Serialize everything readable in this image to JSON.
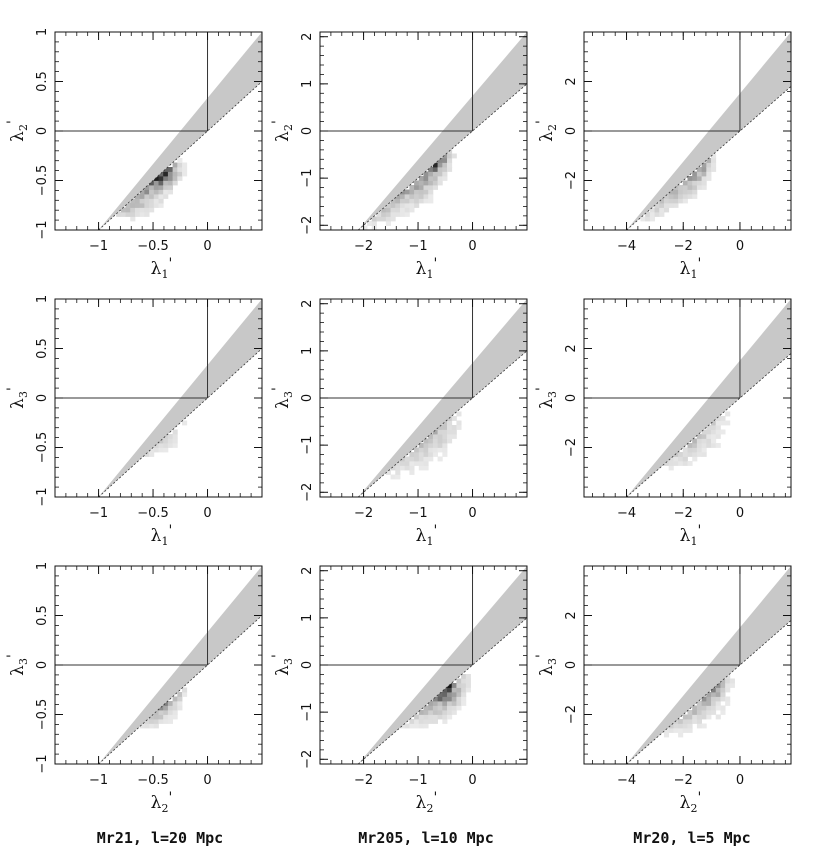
{
  "captions": [
    "Mr21, l=20 Mpc",
    "Mr205, l=10 Mpc",
    "Mr20, l=5 Mpc"
  ],
  "chart_data": [
    {
      "type": "heatmap",
      "xlabel": {
        "sym": "λ",
        "sub": "1",
        "prime": "'"
      },
      "ylabel": {
        "sym": "λ",
        "sub": "2",
        "prime": "'"
      },
      "xlim": [
        -1.4,
        0.5
      ],
      "ylim": [
        -1.0,
        1.0
      ],
      "xticks": [
        -1,
        -0.5,
        0
      ],
      "yticks": [
        -1,
        -0.5,
        0,
        0.5,
        1
      ],
      "ref_lines": {
        "x": 0,
        "y": 0
      },
      "excluded_region": "y > x (shaded)",
      "clusters": [
        {
          "x": -0.5,
          "y": -0.4,
          "sx": 0.11,
          "sy": 0.09,
          "w": 1.0
        },
        {
          "x": -0.75,
          "y": -0.55,
          "sx": 0.18,
          "sy": 0.16,
          "w": 0.35
        },
        {
          "x": -1.0,
          "y": -0.65,
          "sx": 0.18,
          "sy": 0.1,
          "w": 0.15
        }
      ]
    },
    {
      "type": "heatmap",
      "xlabel": {
        "sym": "λ",
        "sub": "1",
        "prime": "'"
      },
      "ylabel": {
        "sym": "λ",
        "sub": "2",
        "prime": "'"
      },
      "xlim": [
        -2.8,
        1.0
      ],
      "ylim": [
        -2.1,
        2.1
      ],
      "xticks": [
        -2,
        -1,
        0
      ],
      "yticks": [
        -2,
        -1,
        0,
        1,
        2
      ],
      "ref_lines": {
        "x": 0,
        "y": 0
      },
      "excluded_region": "y > x (shaded)",
      "clusters": [
        {
          "x": -0.85,
          "y": -0.55,
          "sx": 0.2,
          "sy": 0.2,
          "w": 1.0
        },
        {
          "x": -1.3,
          "y": -1.0,
          "sx": 0.35,
          "sy": 0.3,
          "w": 0.35
        },
        {
          "x": -1.9,
          "y": -1.6,
          "sx": 0.35,
          "sy": 0.25,
          "w": 0.15
        }
      ]
    },
    {
      "type": "heatmap",
      "xlabel": {
        "sym": "λ",
        "sub": "1",
        "prime": "'"
      },
      "ylabel": {
        "sym": "λ",
        "sub": "2",
        "prime": "'"
      },
      "xlim": [
        -5.5,
        1.8
      ],
      "ylim": [
        -4.0,
        4.0
      ],
      "xticks": [
        -4,
        -2,
        0
      ],
      "yticks": [
        -2,
        0,
        2
      ],
      "ref_lines": {
        "x": 0,
        "y": 0
      },
      "excluded_region": "y > x (shaded)",
      "clusters": [
        {
          "x": -1.8,
          "y": -1.1,
          "sx": 0.35,
          "sy": 0.4,
          "w": 1.0
        },
        {
          "x": -2.5,
          "y": -1.9,
          "sx": 0.6,
          "sy": 0.5,
          "w": 0.35
        },
        {
          "x": -3.5,
          "y": -3.0,
          "sx": 0.6,
          "sy": 0.4,
          "w": 0.12
        }
      ]
    },
    {
      "type": "heatmap",
      "xlabel": {
        "sym": "λ",
        "sub": "1",
        "prime": "'"
      },
      "ylabel": {
        "sym": "λ",
        "sub": "3",
        "prime": "'"
      },
      "xlim": [
        -1.4,
        0.5
      ],
      "ylim": [
        -1.0,
        1.0
      ],
      "xticks": [
        -1,
        -0.5,
        0
      ],
      "yticks": [
        -1,
        -0.5,
        0,
        0.5,
        1
      ],
      "ref_lines": {
        "x": 0,
        "y": 0
      },
      "excluded_region": "y > x (shaded)",
      "clusters": [
        {
          "x": -0.55,
          "y": 0.0,
          "sx": 0.1,
          "sy": 0.15,
          "w": 1.0
        },
        {
          "x": -0.7,
          "y": -0.2,
          "sx": 0.22,
          "sy": 0.2,
          "w": 0.35
        },
        {
          "x": -0.5,
          "y": 0.3,
          "sx": 0.15,
          "sy": 0.15,
          "w": 0.2
        }
      ]
    },
    {
      "type": "heatmap",
      "xlabel": {
        "sym": "λ",
        "sub": "1",
        "prime": "'"
      },
      "ylabel": {
        "sym": "λ",
        "sub": "3",
        "prime": "'"
      },
      "xlim": [
        -2.8,
        1.0
      ],
      "ylim": [
        -2.1,
        2.1
      ],
      "xticks": [
        -2,
        -1,
        0
      ],
      "yticks": [
        -2,
        -1,
        0,
        1,
        2
      ],
      "ref_lines": {
        "x": 0,
        "y": 0
      },
      "excluded_region": "y > x (shaded)",
      "clusters": [
        {
          "x": -0.9,
          "y": -0.05,
          "sx": 0.2,
          "sy": 0.3,
          "w": 1.0
        },
        {
          "x": -1.3,
          "y": -0.4,
          "sx": 0.5,
          "sy": 0.5,
          "w": 0.35
        },
        {
          "x": -2.0,
          "y": -1.0,
          "sx": 0.5,
          "sy": 0.4,
          "w": 0.12
        }
      ]
    },
    {
      "type": "heatmap",
      "xlabel": {
        "sym": "λ",
        "sub": "1",
        "prime": "'"
      },
      "ylabel": {
        "sym": "λ",
        "sub": "3",
        "prime": "'"
      },
      "xlim": [
        -5.5,
        1.8
      ],
      "ylim": [
        -4.0,
        4.0
      ],
      "xticks": [
        -4,
        -2,
        0
      ],
      "yticks": [
        -2,
        0,
        2
      ],
      "ref_lines": {
        "x": 0,
        "y": 0
      },
      "excluded_region": "y > x (shaded)",
      "clusters": [
        {
          "x": -1.9,
          "y": -0.3,
          "sx": 0.4,
          "sy": 0.5,
          "w": 1.0
        },
        {
          "x": -2.6,
          "y": -0.8,
          "sx": 1.0,
          "sy": 0.9,
          "w": 0.3
        },
        {
          "x": -3.5,
          "y": -1.5,
          "sx": 1.0,
          "sy": 0.8,
          "w": 0.1
        }
      ]
    },
    {
      "type": "heatmap",
      "xlabel": {
        "sym": "λ",
        "sub": "2",
        "prime": "'"
      },
      "ylabel": {
        "sym": "λ",
        "sub": "3",
        "prime": "'"
      },
      "xlim": [
        -1.4,
        0.5
      ],
      "ylim": [
        -1.0,
        1.0
      ],
      "xticks": [
        -1,
        -0.5,
        0
      ],
      "yticks": [
        -1,
        -0.5,
        0,
        0.5,
        1
      ],
      "ref_lines": {
        "x": 0,
        "y": 0
      },
      "excluded_region": "y > x (shaded)",
      "clusters": [
        {
          "x": -0.42,
          "y": -0.1,
          "sx": 0.08,
          "sy": 0.15,
          "w": 1.0
        },
        {
          "x": -0.55,
          "y": -0.3,
          "sx": 0.15,
          "sy": 0.15,
          "w": 0.35
        },
        {
          "x": -0.3,
          "y": 0.2,
          "sx": 0.1,
          "sy": 0.12,
          "w": 0.25
        }
      ]
    },
    {
      "type": "heatmap",
      "xlabel": {
        "sym": "λ",
        "sub": "2",
        "prime": "'"
      },
      "ylabel": {
        "sym": "λ",
        "sub": "3",
        "prime": "'"
      },
      "xlim": [
        -2.8,
        1.0
      ],
      "ylim": [
        -2.1,
        2.1
      ],
      "xticks": [
        -2,
        -1,
        0
      ],
      "yticks": [
        -2,
        -1,
        0,
        1,
        2
      ],
      "ref_lines": {
        "x": 0,
        "y": 0
      },
      "excluded_region": "y > x (shaded)",
      "clusters": [
        {
          "x": -0.55,
          "y": -0.2,
          "sx": 0.15,
          "sy": 0.3,
          "w": 1.0
        },
        {
          "x": -1.0,
          "y": -0.4,
          "sx": 0.45,
          "sy": 0.4,
          "w": 0.3
        },
        {
          "x": -1.6,
          "y": -0.8,
          "sx": 0.5,
          "sy": 0.3,
          "w": 0.12
        }
      ]
    },
    {
      "type": "heatmap",
      "xlabel": {
        "sym": "λ",
        "sub": "2",
        "prime": "'"
      },
      "ylabel": {
        "sym": "λ",
        "sub": "3",
        "prime": "'"
      },
      "xlim": [
        -5.5,
        1.8
      ],
      "ylim": [
        -4.0,
        4.0
      ],
      "xticks": [
        -4,
        -2,
        0
      ],
      "yticks": [
        -2,
        0,
        2
      ],
      "ref_lines": {
        "x": 0,
        "y": 0
      },
      "excluded_region": "y > x (shaded)",
      "clusters": [
        {
          "x": -1.2,
          "y": -0.3,
          "sx": 0.3,
          "sy": 0.5,
          "w": 1.0
        },
        {
          "x": -2.0,
          "y": -0.8,
          "sx": 0.8,
          "sy": 0.8,
          "w": 0.3
        },
        {
          "x": -3.0,
          "y": -1.5,
          "sx": 1.0,
          "sy": 0.8,
          "w": 0.1
        }
      ]
    }
  ]
}
